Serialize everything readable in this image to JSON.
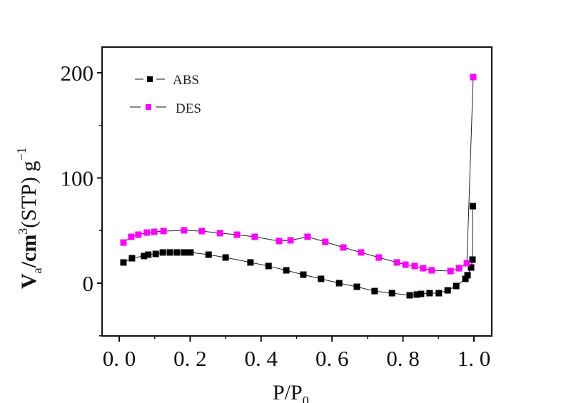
{
  "chart_data": {
    "type": "line",
    "title": "",
    "xlabel": "P/P",
    "xlabel_sub": "0",
    "ylabel": "V",
    "ylabel_sub": "a",
    "ylabel_mid": "/cm",
    "ylabel_sup": "3",
    "ylabel_rest": "(STP)  g",
    "ylabel_sup2": "−1",
    "xlim": [
      -0.05,
      1.05
    ],
    "ylim": [
      -50,
      225
    ],
    "xticks": [
      0.0,
      0.2,
      0.4,
      0.6,
      0.8,
      1.0
    ],
    "xtick_labels": [
      "0.0",
      "0.2",
      "0.4",
      "0.6",
      "0.8",
      "1.0"
    ],
    "xminor": [
      0.1,
      0.3,
      0.5,
      0.7,
      0.9
    ],
    "yticks": [
      0,
      100,
      200
    ],
    "ytick_labels": [
      "0",
      "100",
      "200"
    ],
    "yminor": [
      -50,
      50,
      150
    ],
    "grid": false,
    "legend_position": "top-left",
    "series": [
      {
        "name": "ABS",
        "color": "#000000",
        "marker": "square",
        "x": [
          0.012,
          0.036,
          0.07,
          0.082,
          0.103,
          0.123,
          0.143,
          0.163,
          0.183,
          0.201,
          0.252,
          0.3,
          0.37,
          0.421,
          0.471,
          0.519,
          0.569,
          0.62,
          0.67,
          0.72,
          0.769,
          0.819,
          0.839,
          0.851,
          0.875,
          0.901,
          0.926,
          0.95,
          0.976,
          0.982,
          0.992,
          0.996,
          0.997
        ],
        "y": [
          19.7,
          23.7,
          25.8,
          27.1,
          27.8,
          29.2,
          29.2,
          29.2,
          29.2,
          29.2,
          27.1,
          24.4,
          19.7,
          16.3,
          12.2,
          8.1,
          4.1,
          0.0,
          -3.4,
          -7.5,
          -9.5,
          -11.5,
          -10.8,
          -10.2,
          -9.5,
          -9.5,
          -6.8,
          -2.7,
          4.1,
          7.5,
          14.9,
          22.4,
          73.2
        ]
      },
      {
        "name": "DES",
        "color": "#ff00ff",
        "marker": "square",
        "x": [
          0.998,
          0.98,
          0.958,
          0.934,
          0.881,
          0.857,
          0.833,
          0.807,
          0.783,
          0.732,
          0.682,
          0.632,
          0.581,
          0.531,
          0.483,
          0.451,
          0.382,
          0.332,
          0.284,
          0.233,
          0.183,
          0.125,
          0.099,
          0.078,
          0.054,
          0.034,
          0.012
        ],
        "y": [
          195.9,
          19.0,
          14.2,
          11.5,
          12.2,
          14.2,
          16.3,
          17.6,
          19.7,
          24.4,
          29.2,
          33.9,
          39.3,
          44.1,
          40.7,
          40.0,
          44.1,
          46.1,
          47.5,
          49.5,
          50.2,
          49.5,
          48.8,
          48.1,
          46.1,
          44.1,
          38.6
        ]
      }
    ]
  }
}
